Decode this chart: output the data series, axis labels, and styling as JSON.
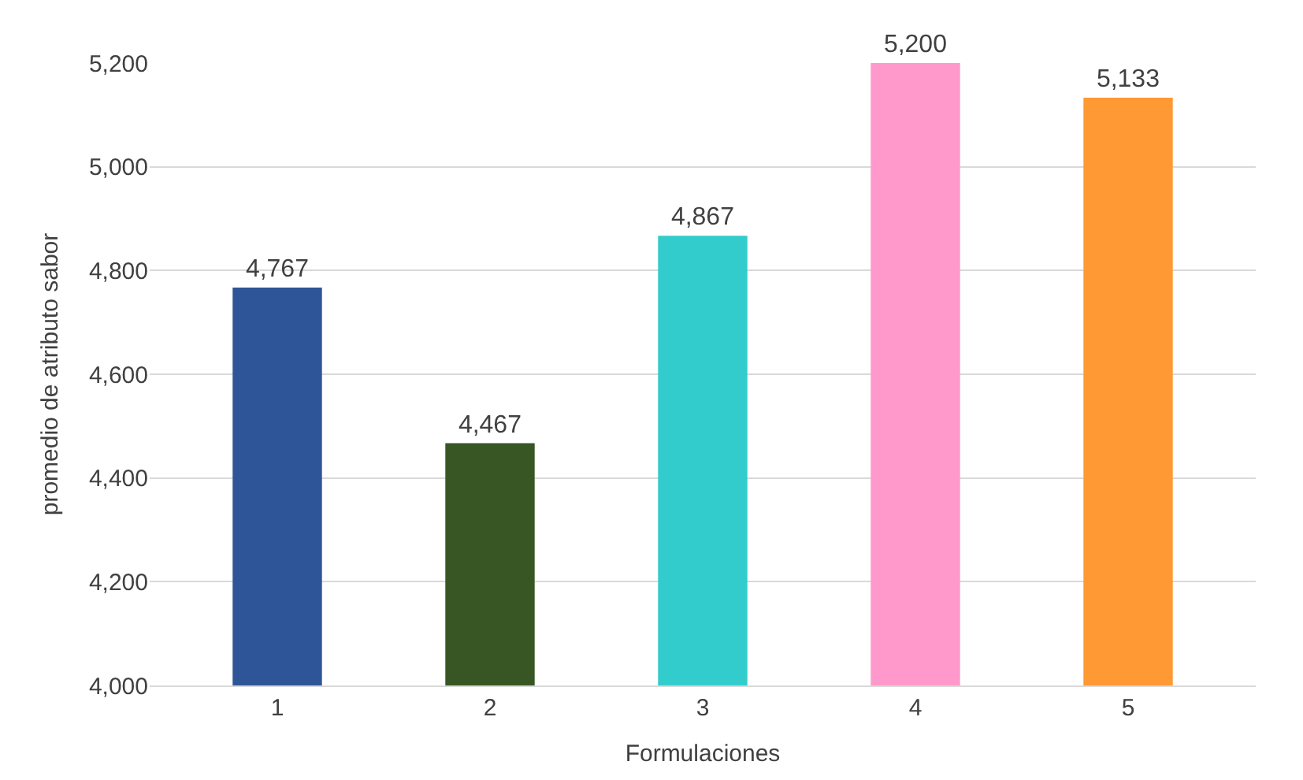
{
  "chart_data": {
    "type": "bar",
    "xlabel": "Formulaciones",
    "ylabel": "promedio de atributo sabor",
    "categories": [
      "1",
      "2",
      "3",
      "4",
      "5"
    ],
    "values": [
      4767,
      4467,
      4867,
      5200,
      5133
    ],
    "value_labels": [
      "4,767",
      "4,467",
      "4,867",
      "5,200",
      "5,133"
    ],
    "colors": [
      "#2e5597",
      "#375623",
      "#33cccc",
      "#ff99cc",
      "#ff9933"
    ],
    "ylim": [
      4000,
      5200
    ],
    "yticks": [
      {
        "value": 4000,
        "label": "4,000"
      },
      {
        "value": 4200,
        "label": "4,200"
      },
      {
        "value": 4400,
        "label": "4,400"
      },
      {
        "value": 4600,
        "label": "4,600"
      },
      {
        "value": 4800,
        "label": "4,800"
      },
      {
        "value": 5000,
        "label": "5,000"
      },
      {
        "value": 5200,
        "label": "5,200"
      }
    ],
    "grid": "y"
  }
}
